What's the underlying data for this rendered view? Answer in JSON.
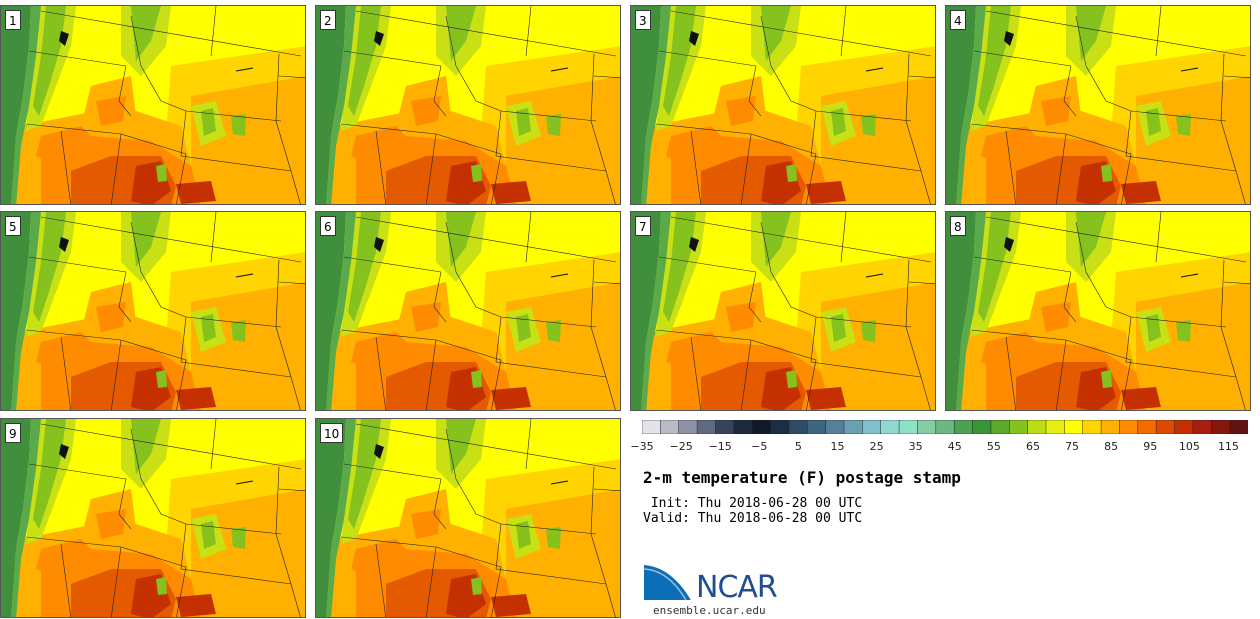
{
  "panels": [
    {
      "label": "1"
    },
    {
      "label": "2"
    },
    {
      "label": "3"
    },
    {
      "label": "4"
    },
    {
      "label": "5"
    },
    {
      "label": "6"
    },
    {
      "label": "7"
    },
    {
      "label": "8"
    },
    {
      "label": "9"
    },
    {
      "label": "10"
    }
  ],
  "colorbar": {
    "colors": [
      "#e3e3ea",
      "#b9bcc6",
      "#8d93a4",
      "#5f6a80",
      "#364358",
      "#1d2a3c",
      "#0e1a2a",
      "#1c2e44",
      "#2f4c64",
      "#3f6680",
      "#56809a",
      "#6aa0b4",
      "#7fc0cc",
      "#8ed8d0",
      "#8ee0c6",
      "#86cca4",
      "#6cb882",
      "#4ca24e",
      "#3a9438",
      "#5aa82c",
      "#86c21e",
      "#bcdc14",
      "#e6f010",
      "#ffff00",
      "#ffd400",
      "#ffb000",
      "#ff8c00",
      "#f26a00",
      "#dc4a00",
      "#c43000",
      "#a61e0e",
      "#84160e",
      "#62120e"
    ],
    "tick_values": [
      -35,
      -25,
      -15,
      -5,
      5,
      15,
      25,
      35,
      45,
      55,
      65,
      75,
      85,
      95,
      105,
      115
    ],
    "tick_labels": [
      "−35",
      "−25",
      "−15",
      "−5",
      "5",
      "15",
      "25",
      "35",
      "45",
      "55",
      "65",
      "75",
      "85",
      "95",
      "105",
      "115"
    ],
    "min": -35,
    "max": 120
  },
  "title": "2-m temperature (F) postage stamp",
  "init": " Init: Thu 2018-06-28 00 UTC",
  "valid": "Valid: Thu 2018-06-28 00 UTC",
  "logo_text": "NCAR",
  "url": "ensemble.ucar.edu",
  "map_colors": {
    "ocean": "#3f8f3c",
    "coast": "#5aaa4a",
    "green": "#86c21e",
    "yellowgreen": "#c8e014",
    "yellow": "#ffff00",
    "gold": "#ffd400",
    "orange": "#ffb000",
    "darkorange": "#ff8c00",
    "red": "#e45a00",
    "deepred": "#c43000"
  }
}
